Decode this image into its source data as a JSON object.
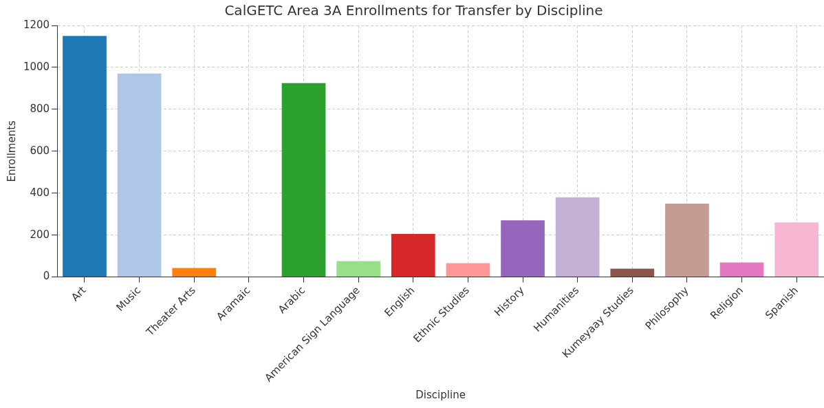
{
  "chart_data": {
    "type": "bar",
    "title": "CalGETC Area 3A Enrollments for Transfer by Discipline",
    "xlabel": "Discipline",
    "ylabel": "Enrollments",
    "categories": [
      "Art",
      "Music",
      "Theater Arts",
      "Aramaic",
      "Arabic",
      "American Sign Language",
      "English",
      "Ethnic Studies",
      "History",
      "Humanities",
      "Kumeyaay Studies",
      "Philosophy",
      "Religion",
      "Spanish"
    ],
    "values": [
      1150,
      970,
      43,
      0,
      925,
      76,
      205,
      66,
      270,
      380,
      40,
      350,
      69,
      260
    ],
    "colors": [
      "#1f77b4",
      "#aec7e8",
      "#ff7f0e",
      "#ffbb78",
      "#2ca02c",
      "#98df8a",
      "#d62728",
      "#ff9896",
      "#9467bd",
      "#c5b0d5",
      "#8c564b",
      "#c49c94",
      "#e377c2",
      "#f7b6d2"
    ],
    "ylim": [
      0,
      1200
    ],
    "yticks": [
      0,
      200,
      400,
      600,
      800,
      1000,
      1200
    ],
    "grid": true
  }
}
